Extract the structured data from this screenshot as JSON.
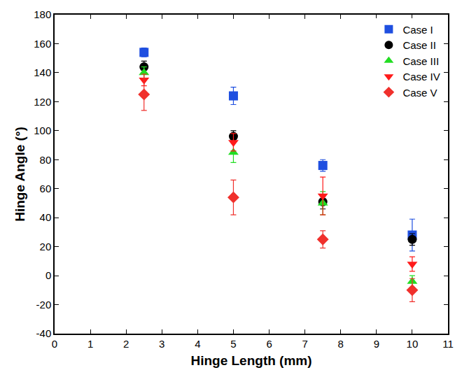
{
  "chart_data": {
    "type": "scatter",
    "x_label": "Hinge Length (mm)",
    "y_label": "Hinge Angle (°)",
    "xlim": [
      0,
      11
    ],
    "xticks": [
      0,
      1,
      2,
      3,
      4,
      5,
      6,
      7,
      8,
      9,
      10,
      11
    ],
    "ylim": [
      -40,
      180
    ],
    "yticks": [
      -40,
      -20,
      0,
      20,
      40,
      60,
      80,
      100,
      120,
      140,
      160,
      180
    ],
    "grid": false,
    "legend": "upper right",
    "x": [
      2.5,
      5,
      7.5,
      10
    ],
    "series": [
      {
        "name": "Case I",
        "color": "#1f4fe0",
        "marker": "square",
        "values": [
          154,
          124,
          76,
          28
        ],
        "errors": [
          3,
          6,
          4,
          11
        ]
      },
      {
        "name": "Case II",
        "color": "#000000",
        "marker": "circle",
        "values": [
          144,
          96,
          51,
          25
        ],
        "errors": [
          4,
          4,
          5,
          4
        ]
      },
      {
        "name": "Case III",
        "color": "#22dd22",
        "marker": "triangle-up",
        "values": [
          140,
          85,
          50,
          -4
        ],
        "errors": [
          4,
          7,
          8,
          4
        ]
      },
      {
        "name": "Case IV",
        "color": "#ff1a1a",
        "marker": "triangle-down",
        "values": [
          135,
          92,
          55,
          8
        ],
        "errors": [
          4,
          6,
          13,
          5
        ]
      },
      {
        "name": "Case V",
        "color": "#f0302c",
        "marker": "diamond",
        "values": [
          125,
          54,
          25,
          -10
        ],
        "errors": [
          11,
          12,
          6,
          8
        ]
      }
    ]
  }
}
